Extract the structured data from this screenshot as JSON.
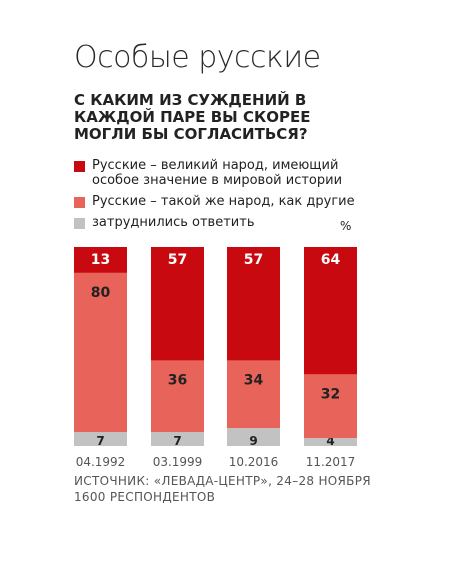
{
  "title": "Особые русские",
  "question": "С КАКИМ ИЗ СУЖДЕНИЙ В КАЖДОЙ ПАРЕ ВЫ СКОРЕЕ МОГЛИ БЫ СОГЛАСИТЬСЯ?",
  "unit": "%",
  "source": "ИСТОЧНИК: «ЛЕВАДА-ЦЕНТР», 24–28 НОЯБРЯ 1600 РЕСПОНДЕНТОВ",
  "colors": {
    "great": "#c8090f",
    "same": "#e8645a",
    "hard": "#c2c2c2"
  },
  "chart_data": {
    "type": "bar",
    "stacked": true,
    "categories": [
      "04.1992",
      "03.1999",
      "10.2016",
      "11.2017"
    ],
    "series": [
      {
        "name": "затруднились ответить",
        "values": [
          7,
          7,
          9,
          4
        ]
      },
      {
        "name": "Русские – такой же народ, как другие",
        "values": [
          80,
          36,
          34,
          32
        ]
      },
      {
        "name": "Русские – великий народ, имеющий особое значение в мировой истории",
        "values": [
          13,
          57,
          57,
          64
        ]
      }
    ],
    "ylim": [
      0,
      100
    ],
    "legend_position": "top",
    "grid": false
  }
}
